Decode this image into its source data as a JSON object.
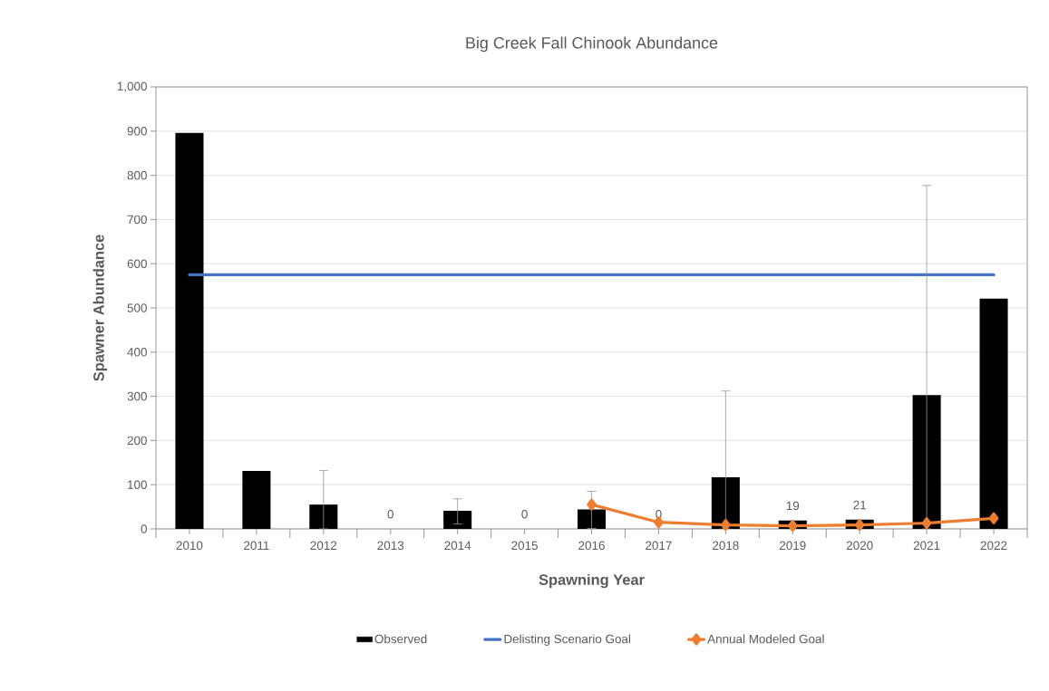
{
  "chart_data": {
    "type": "bar",
    "title": "Big Creek Fall Chinook Abundance",
    "xlabel": "Spawning Year",
    "ylabel": "Spawner Abundance",
    "categories": [
      "2010",
      "2011",
      "2012",
      "2013",
      "2014",
      "2015",
      "2016",
      "2017",
      "2018",
      "2019",
      "2020",
      "2021",
      "2022"
    ],
    "series": [
      {
        "name": "Observed",
        "color": "#000000",
        "values": [
          896,
          131,
          55,
          0,
          41,
          0,
          44,
          0,
          117,
          19,
          21,
          303,
          521
        ],
        "errors": [
          null,
          null,
          [
            0,
            132
          ],
          null,
          [
            11,
            68
          ],
          null,
          [
            1,
            85
          ],
          null,
          [
            0,
            312
          ],
          null,
          null,
          [
            0,
            777
          ],
          null
        ],
        "value_labels": [
          null,
          null,
          null,
          "0",
          null,
          "0",
          null,
          "0",
          null,
          "19",
          "21",
          null,
          null
        ]
      },
      {
        "name": "Delisting Scenario Goal",
        "type": "line",
        "color": "#4472c4",
        "marker": "none",
        "values": [
          575,
          575,
          575,
          575,
          575,
          575,
          575,
          575,
          575,
          575,
          575,
          575,
          575
        ]
      },
      {
        "name": "Annual Modeled Goal",
        "type": "line",
        "color": "#ed7d31",
        "marker": "diamond",
        "values": [
          null,
          null,
          null,
          null,
          null,
          null,
          55,
          15,
          9,
          7,
          9,
          13,
          24
        ]
      }
    ],
    "ylim": [
      0,
      1000
    ],
    "yticks": [
      0,
      100,
      200,
      300,
      400,
      500,
      600,
      700,
      800,
      900,
      {
        "value": 1000,
        "label": "1,000"
      }
    ],
    "grid": "y",
    "legend": "bottom"
  }
}
